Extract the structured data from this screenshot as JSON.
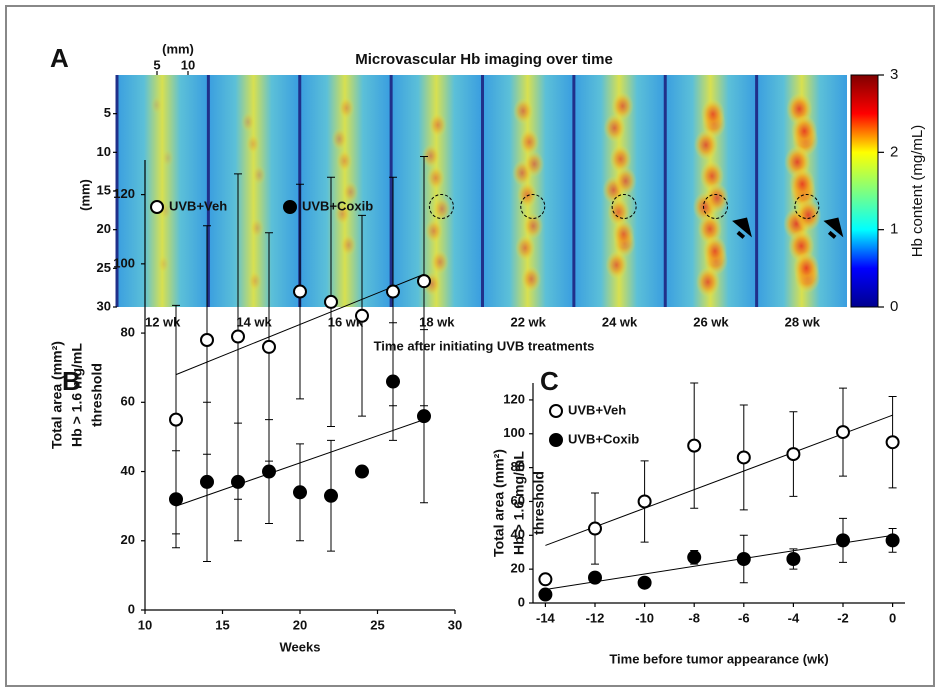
{
  "chart_data": [
    {
      "type": "image",
      "panel": "A",
      "title": "Microvascular Hb imaging over time",
      "x_label": "(mm)",
      "y_label": "(mm)",
      "xlim": [
        0,
        12
      ],
      "xticks": [
        5,
        10
      ],
      "ylim": [
        0,
        30
      ],
      "yticks": [
        5,
        10,
        15,
        20,
        25,
        30
      ],
      "categories": [
        "12 wk",
        "14 wk",
        "16 wk",
        "18 wk",
        "22 wk",
        "24 wk",
        "26 wk",
        "28 wk"
      ],
      "category_label": "Time after initiating UVB treatments",
      "colormap": "jet",
      "clim": [
        0,
        3
      ],
      "cticks": [
        0,
        1,
        2,
        3
      ],
      "colorbar_label": "Hb content (mg/mL)"
    },
    {
      "type": "scatter",
      "panel": "B",
      "y_label": [
        "Total area (mm²)",
        "Hb > 1.6 mg/mL",
        "threshold"
      ],
      "x_label": "Weeks",
      "xlim": [
        10,
        30
      ],
      "xticks": [
        10,
        15,
        20,
        25,
        30
      ],
      "ylim": [
        0,
        130
      ],
      "yticks": [
        0,
        20,
        40,
        60,
        80,
        100,
        120
      ],
      "x": [
        12,
        14,
        16,
        18,
        20,
        22,
        24,
        26,
        28
      ],
      "series": [
        {
          "name": "UVB+Veh",
          "color": "#000000",
          "marker": "open",
          "values": [
            55,
            78,
            79,
            76,
            92,
            89,
            85,
            92,
            95
          ],
          "errors": [
            33,
            33,
            47,
            33,
            31,
            36,
            29,
            33,
            36
          ],
          "trend": {
            "x": [
              12,
              28
            ],
            "y": [
              68,
              97
            ]
          }
        },
        {
          "name": "UVB+Coxib",
          "color": "#000000",
          "marker": "filled",
          "values": [
            32,
            37,
            37,
            40,
            34,
            33,
            40,
            66,
            56
          ],
          "errors": [
            14,
            23,
            17,
            15,
            14,
            16,
            0,
            17,
            25
          ],
          "trend": {
            "x": [
              12,
              28
            ],
            "y": [
              30,
              55
            ]
          }
        }
      ]
    },
    {
      "type": "scatter",
      "panel": "C",
      "y_label": [
        "Total area (mm²)",
        "Hb > 1.6 mg/mL",
        "threshold"
      ],
      "x_label": "Time before tumor appearance (wk)",
      "xlim": [
        -14.5,
        0.5
      ],
      "xticks": [
        -14,
        -12,
        -10,
        -8,
        -6,
        -4,
        -2,
        0
      ],
      "ylim": [
        0,
        130
      ],
      "yticks": [
        0,
        20,
        40,
        60,
        80,
        100,
        120
      ],
      "x": [
        -14,
        -12,
        -10,
        -8,
        -6,
        -4,
        -2,
        0
      ],
      "series": [
        {
          "name": "UVB+Veh",
          "color": "#000000",
          "marker": "open",
          "values": [
            14,
            44,
            60,
            93,
            86,
            88,
            101,
            95
          ],
          "errors": [
            0,
            21,
            24,
            37,
            31,
            25,
            26,
            27
          ],
          "trend": {
            "x": [
              -14,
              0
            ],
            "y": [
              34,
              111
            ]
          }
        },
        {
          "name": "UVB+Coxib",
          "color": "#000000",
          "marker": "filled",
          "values": [
            5,
            15,
            12,
            27,
            26,
            26,
            37,
            37
          ],
          "errors": [
            0,
            0,
            0,
            4,
            14,
            6,
            13,
            7
          ],
          "trend": {
            "x": [
              -14,
              0
            ],
            "y": [
              8,
              40
            ]
          }
        }
      ]
    }
  ]
}
